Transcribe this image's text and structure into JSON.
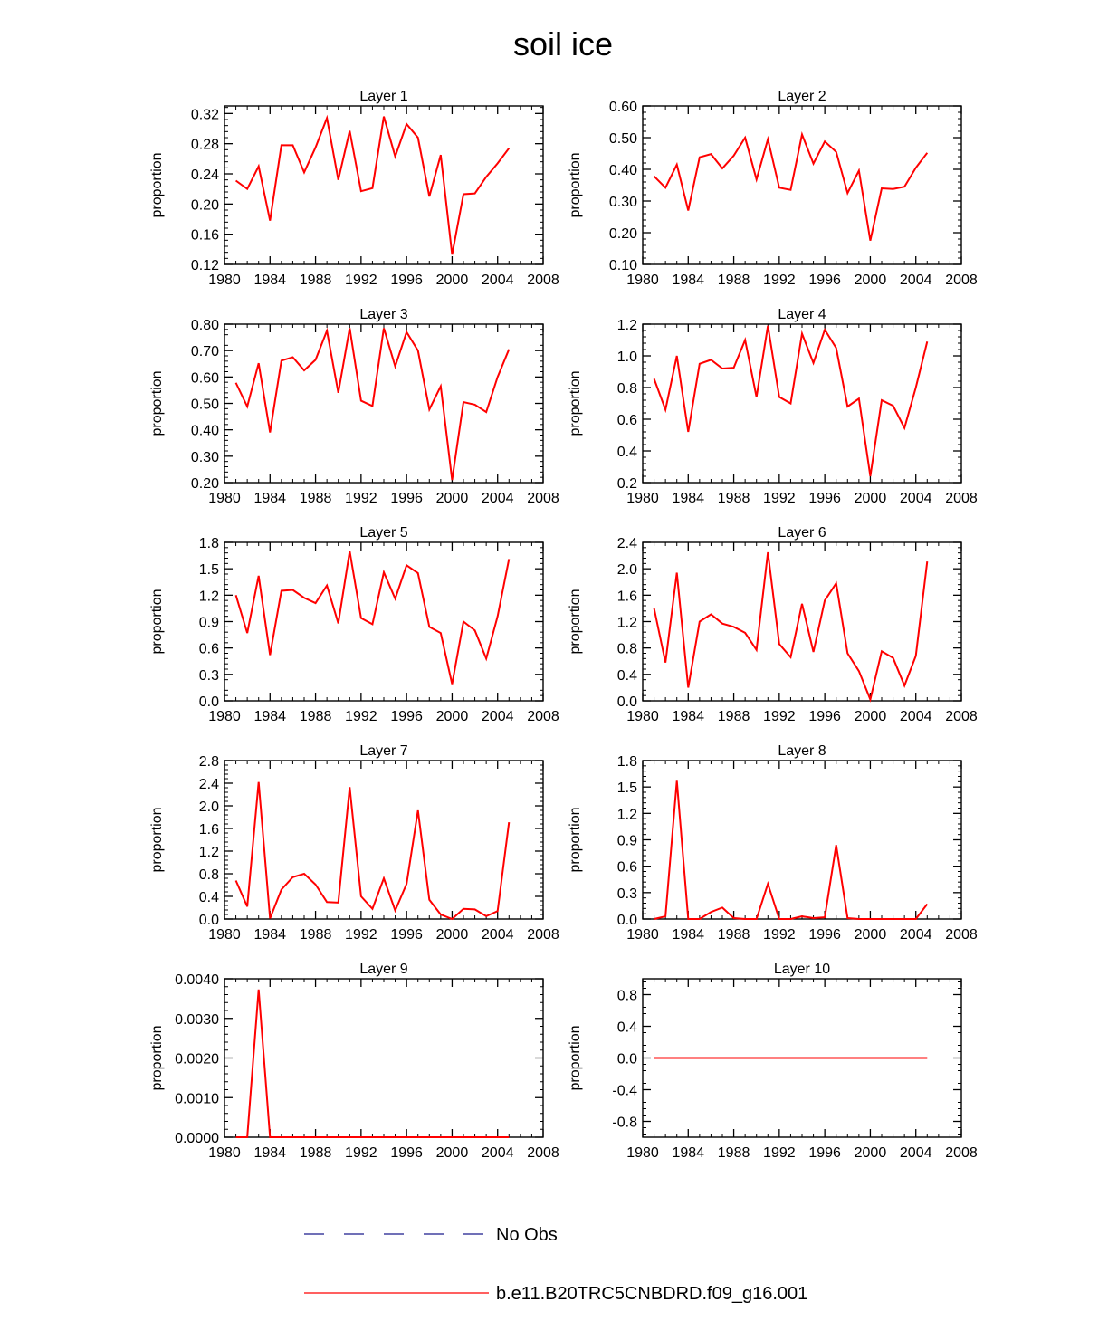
{
  "figure": {
    "title": "soil ice"
  },
  "legend": {
    "entries": [
      {
        "label": "No Obs",
        "color": "#1a1a8c",
        "style": "dashed"
      },
      {
        "label": "b.e11.B20TRC5CNBDRD.f09_g16.001",
        "color": "#ff0000",
        "style": "solid"
      }
    ]
  },
  "chart_data": [
    {
      "type": "line",
      "title": "Layer 1",
      "xlabel": "",
      "ylabel": "proportion",
      "xlim": [
        1980,
        2008
      ],
      "x_ticks": [
        1980,
        1984,
        1988,
        1992,
        1996,
        2000,
        2004,
        2008
      ],
      "ylim": [
        0.12,
        0.33
      ],
      "y_ticks": [
        0.12,
        0.16,
        0.2,
        0.24,
        0.28,
        0.32
      ],
      "y_decimals": 2,
      "series": [
        {
          "name": "b.e11.B20TRC5CNBDRD.f09_g16.001",
          "color": "#ff0000",
          "x": [
            1981,
            1982,
            1983,
            1984,
            1985,
            1986,
            1987,
            1988,
            1989,
            1990,
            1991,
            1992,
            1993,
            1994,
            1995,
            1996,
            1997,
            1998,
            1999,
            2000,
            2001,
            2002,
            2003,
            2004,
            2005
          ],
          "values": [
            0.231,
            0.22,
            0.25,
            0.178,
            0.278,
            0.278,
            0.242,
            0.275,
            0.314,
            0.232,
            0.297,
            0.217,
            0.221,
            0.316,
            0.263,
            0.306,
            0.288,
            0.21,
            0.265,
            0.133,
            0.213,
            0.214,
            0.236,
            0.254,
            0.274
          ]
        }
      ]
    },
    {
      "type": "line",
      "title": "Layer 2",
      "xlabel": "",
      "ylabel": "proportion",
      "xlim": [
        1980,
        2008
      ],
      "x_ticks": [
        1980,
        1984,
        1988,
        1992,
        1996,
        2000,
        2004,
        2008
      ],
      "ylim": [
        0.1,
        0.6
      ],
      "y_ticks": [
        0.1,
        0.2,
        0.3,
        0.4,
        0.5,
        0.6
      ],
      "y_decimals": 2,
      "series": [
        {
          "name": "b.e11.B20TRC5CNBDRD.f09_g16.001",
          "color": "#ff0000",
          "x": [
            1981,
            1982,
            1983,
            1984,
            1985,
            1986,
            1987,
            1988,
            1989,
            1990,
            1991,
            1992,
            1993,
            1994,
            1995,
            1996,
            1997,
            1998,
            1999,
            2000,
            2001,
            2002,
            2003,
            2004,
            2005
          ],
          "values": [
            0.378,
            0.342,
            0.415,
            0.27,
            0.438,
            0.448,
            0.403,
            0.443,
            0.5,
            0.368,
            0.495,
            0.342,
            0.335,
            0.51,
            0.418,
            0.488,
            0.455,
            0.325,
            0.396,
            0.175,
            0.34,
            0.338,
            0.345,
            0.405,
            0.452
          ]
        }
      ]
    },
    {
      "type": "line",
      "title": "Layer 3",
      "xlabel": "",
      "ylabel": "proportion",
      "xlim": [
        1980,
        2008
      ],
      "x_ticks": [
        1980,
        1984,
        1988,
        1992,
        1996,
        2000,
        2004,
        2008
      ],
      "ylim": [
        0.2,
        0.8
      ],
      "y_ticks": [
        0.2,
        0.3,
        0.4,
        0.5,
        0.6,
        0.7,
        0.8
      ],
      "y_decimals": 2,
      "series": [
        {
          "name": "b.e11.B20TRC5CNBDRD.f09_g16.001",
          "color": "#ff0000",
          "x": [
            1981,
            1982,
            1983,
            1984,
            1985,
            1986,
            1987,
            1988,
            1989,
            1990,
            1991,
            1992,
            1993,
            1994,
            1995,
            1996,
            1997,
            1998,
            1999,
            2000,
            2001,
            2002,
            2003,
            2004,
            2005
          ],
          "values": [
            0.578,
            0.488,
            0.652,
            0.39,
            0.662,
            0.675,
            0.625,
            0.665,
            0.775,
            0.54,
            0.785,
            0.51,
            0.49,
            0.785,
            0.64,
            0.77,
            0.7,
            0.477,
            0.565,
            0.21,
            0.505,
            0.495,
            0.467,
            0.6,
            0.705
          ]
        }
      ]
    },
    {
      "type": "line",
      "title": "Layer 4",
      "xlabel": "",
      "ylabel": "proportion",
      "xlim": [
        1980,
        2008
      ],
      "x_ticks": [
        1980,
        1984,
        1988,
        1992,
        1996,
        2000,
        2004,
        2008
      ],
      "ylim": [
        0.2,
        1.2
      ],
      "y_ticks": [
        0.2,
        0.4,
        0.6,
        0.8,
        1.0,
        1.2
      ],
      "y_decimals": 1,
      "series": [
        {
          "name": "b.e11.B20TRC5CNBDRD.f09_g16.001",
          "color": "#ff0000",
          "x": [
            1981,
            1982,
            1983,
            1984,
            1985,
            1986,
            1987,
            1988,
            1989,
            1990,
            1991,
            1992,
            1993,
            1994,
            1995,
            1996,
            1997,
            1998,
            1999,
            2000,
            2001,
            2002,
            2003,
            2004,
            2005
          ],
          "values": [
            0.855,
            0.66,
            1.0,
            0.52,
            0.95,
            0.975,
            0.92,
            0.925,
            1.1,
            0.74,
            1.19,
            0.74,
            0.7,
            1.14,
            0.955,
            1.165,
            1.05,
            0.68,
            0.73,
            0.24,
            0.72,
            0.685,
            0.545,
            0.8,
            1.09
          ]
        }
      ]
    },
    {
      "type": "line",
      "title": "Layer 5",
      "xlabel": "",
      "ylabel": "proportion",
      "xlim": [
        1980,
        2008
      ],
      "x_ticks": [
        1980,
        1984,
        1988,
        1992,
        1996,
        2000,
        2004,
        2008
      ],
      "ylim": [
        0.0,
        1.8
      ],
      "y_ticks": [
        0.0,
        0.3,
        0.6,
        0.9,
        1.2,
        1.5,
        1.8
      ],
      "y_decimals": 1,
      "series": [
        {
          "name": "b.e11.B20TRC5CNBDRD.f09_g16.001",
          "color": "#ff0000",
          "x": [
            1981,
            1982,
            1983,
            1984,
            1985,
            1986,
            1987,
            1988,
            1989,
            1990,
            1991,
            1992,
            1993,
            1994,
            1995,
            1996,
            1997,
            1998,
            1999,
            2000,
            2001,
            2002,
            2003,
            2004,
            2005
          ],
          "values": [
            1.2,
            0.77,
            1.42,
            0.52,
            1.25,
            1.26,
            1.17,
            1.11,
            1.31,
            0.88,
            1.7,
            0.94,
            0.87,
            1.46,
            1.16,
            1.54,
            1.45,
            0.84,
            0.77,
            0.19,
            0.9,
            0.8,
            0.48,
            0.96,
            1.61
          ]
        }
      ]
    },
    {
      "type": "line",
      "title": "Layer 6",
      "xlabel": "",
      "ylabel": "proportion",
      "xlim": [
        1980,
        2008
      ],
      "x_ticks": [
        1980,
        1984,
        1988,
        1992,
        1996,
        2000,
        2004,
        2008
      ],
      "ylim": [
        0.0,
        2.4
      ],
      "y_ticks": [
        0.0,
        0.4,
        0.8,
        1.2,
        1.6,
        2.0,
        2.4
      ],
      "y_decimals": 1,
      "series": [
        {
          "name": "b.e11.B20TRC5CNBDRD.f09_g16.001",
          "color": "#ff0000",
          "x": [
            1981,
            1982,
            1983,
            1984,
            1985,
            1986,
            1987,
            1988,
            1989,
            1990,
            1991,
            1992,
            1993,
            1994,
            1995,
            1996,
            1997,
            1998,
            1999,
            2000,
            2001,
            2002,
            2003,
            2004,
            2005
          ],
          "values": [
            1.4,
            0.58,
            1.94,
            0.2,
            1.2,
            1.31,
            1.17,
            1.12,
            1.03,
            0.77,
            2.25,
            0.86,
            0.66,
            1.47,
            0.74,
            1.52,
            1.78,
            0.72,
            0.45,
            0.02,
            0.75,
            0.65,
            0.23,
            0.68,
            2.11
          ]
        }
      ]
    },
    {
      "type": "line",
      "title": "Layer 7",
      "xlabel": "",
      "ylabel": "proportion",
      "xlim": [
        1980,
        2008
      ],
      "x_ticks": [
        1980,
        1984,
        1988,
        1992,
        1996,
        2000,
        2004,
        2008
      ],
      "ylim": [
        0.0,
        2.8
      ],
      "y_ticks": [
        0.0,
        0.4,
        0.8,
        1.2,
        1.6,
        2.0,
        2.4,
        2.8
      ],
      "y_decimals": 1,
      "series": [
        {
          "name": "b.e11.B20TRC5CNBDRD.f09_g16.001",
          "color": "#ff0000",
          "x": [
            1981,
            1982,
            1983,
            1984,
            1985,
            1986,
            1987,
            1988,
            1989,
            1990,
            1991,
            1992,
            1993,
            1994,
            1995,
            1996,
            1997,
            1998,
            1999,
            2000,
            2001,
            2002,
            2003,
            2004,
            2005
          ],
          "values": [
            0.68,
            0.22,
            2.42,
            0.01,
            0.52,
            0.74,
            0.8,
            0.61,
            0.3,
            0.29,
            2.33,
            0.4,
            0.18,
            0.72,
            0.15,
            0.62,
            1.92,
            0.34,
            0.08,
            0.0,
            0.18,
            0.17,
            0.05,
            0.14,
            1.71
          ]
        }
      ]
    },
    {
      "type": "line",
      "title": "Layer 8",
      "xlabel": "",
      "ylabel": "proportion",
      "xlim": [
        1980,
        2008
      ],
      "x_ticks": [
        1980,
        1984,
        1988,
        1992,
        1996,
        2000,
        2004,
        2008
      ],
      "ylim": [
        0.0,
        1.8
      ],
      "y_ticks": [
        0.0,
        0.3,
        0.6,
        0.9,
        1.2,
        1.5,
        1.8
      ],
      "y_decimals": 1,
      "series": [
        {
          "name": "b.e11.B20TRC5CNBDRD.f09_g16.001",
          "color": "#ff0000",
          "x": [
            1981,
            1982,
            1983,
            1984,
            1985,
            1986,
            1987,
            1988,
            1989,
            1990,
            1991,
            1992,
            1993,
            1994,
            1995,
            1996,
            1997,
            1998,
            1999,
            2000,
            2001,
            2002,
            2003,
            2004,
            2005
          ],
          "values": [
            0.0,
            0.03,
            1.57,
            0.0,
            0.0,
            0.08,
            0.13,
            0.01,
            0.0,
            0.0,
            0.4,
            0.0,
            0.0,
            0.03,
            0.01,
            0.02,
            0.84,
            0.01,
            0.0,
            0.0,
            0.0,
            0.0,
            0.0,
            0.0,
            0.17
          ]
        }
      ]
    },
    {
      "type": "line",
      "title": "Layer 9",
      "xlabel": "",
      "ylabel": "proportion",
      "xlim": [
        1980,
        2008
      ],
      "x_ticks": [
        1980,
        1984,
        1988,
        1992,
        1996,
        2000,
        2004,
        2008
      ],
      "ylim": [
        0.0,
        0.004
      ],
      "y_ticks": [
        0.0,
        0.001,
        0.002,
        0.003,
        0.004
      ],
      "y_decimals": 4,
      "series": [
        {
          "name": "b.e11.B20TRC5CNBDRD.f09_g16.001",
          "color": "#ff0000",
          "x": [
            1981,
            1982,
            1983,
            1984,
            1985,
            1986,
            1987,
            1988,
            1989,
            1990,
            1991,
            1992,
            1993,
            1994,
            1995,
            1996,
            1997,
            1998,
            1999,
            2000,
            2001,
            2002,
            2003,
            2004,
            2005
          ],
          "values": [
            0.0,
            0.0,
            0.00373,
            0.0,
            0.0,
            0.0,
            0.0,
            0.0,
            0.0,
            0.0,
            0.0,
            0.0,
            0.0,
            0.0,
            0.0,
            0.0,
            0.0,
            0.0,
            0.0,
            0.0,
            0.0,
            0.0,
            0.0,
            0.0,
            0.0
          ]
        }
      ]
    },
    {
      "type": "line",
      "title": "Layer 10",
      "xlabel": "",
      "ylabel": "proportion",
      "xlim": [
        1980,
        2008
      ],
      "x_ticks": [
        1980,
        1984,
        1988,
        1992,
        1996,
        2000,
        2004,
        2008
      ],
      "ylim": [
        -1.0,
        1.0
      ],
      "y_ticks": [
        -0.8,
        -0.4,
        0.0,
        0.4,
        0.8
      ],
      "y_decimals": 1,
      "series": [
        {
          "name": "b.e11.B20TRC5CNBDRD.f09_g16.001",
          "color": "#ff0000",
          "x": [
            1981,
            1982,
            1983,
            1984,
            1985,
            1986,
            1987,
            1988,
            1989,
            1990,
            1991,
            1992,
            1993,
            1994,
            1995,
            1996,
            1997,
            1998,
            1999,
            2000,
            2001,
            2002,
            2003,
            2004,
            2005
          ],
          "values": [
            0.0,
            0.0,
            0.0,
            0.0,
            0.0,
            0.0,
            0.0,
            0.0,
            0.0,
            0.0,
            0.0,
            0.0,
            0.0,
            0.0,
            0.0,
            0.0,
            0.0,
            0.0,
            0.0,
            0.0,
            0.0,
            0.0,
            0.0,
            0.0,
            0.0
          ]
        }
      ]
    }
  ]
}
